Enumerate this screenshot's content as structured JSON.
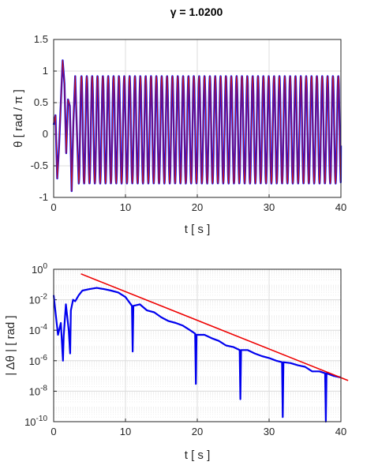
{
  "title": "γ = 1.0200",
  "chart_data": [
    {
      "type": "line",
      "title": "γ = 1.0200",
      "xlabel": "t  [ s ]",
      "ylabel": "θ  [ rad / π ]",
      "xlim": [
        0,
        40
      ],
      "ylim": [
        -1,
        1.5
      ],
      "xticks": [
        0,
        10,
        20,
        30,
        40
      ],
      "yticks": [
        -1,
        -0.5,
        0,
        0.5,
        1,
        1.5
      ],
      "xtick_labels": [
        "0",
        "10",
        "20",
        "30",
        "40"
      ],
      "ytick_labels": [
        "-1",
        "-0.5",
        "0",
        "0.5",
        "1",
        "1.5"
      ],
      "grid": true,
      "series": [
        {
          "color": "#1010ee",
          "x": [
            0.0,
            0.25,
            0.5,
            0.75,
            1.0,
            1.25,
            1.5,
            1.75,
            2.0,
            2.25,
            2.5,
            2.75,
            3.0,
            3.25,
            3.5,
            4.0,
            5.0,
            10.0,
            20.0,
            30.0,
            40.0
          ],
          "y": [
            0.15,
            0.3,
            -0.7,
            -0.2,
            0.5,
            1.17,
            0.8,
            -0.3,
            0.55,
            0.45,
            -0.9,
            0.2,
            0.92,
            0.0,
            -0.78,
            0.92,
            0.92,
            0.92,
            0.92,
            0.92,
            0.92
          ],
          "steady_state_max": 0.92,
          "steady_state_min": -0.78,
          "steady_state_period": 0.745
        },
        {
          "color": "#d01010",
          "x": [
            0.0,
            40.0
          ],
          "y": [
            0.15,
            -0.2
          ]
        }
      ]
    },
    {
      "type": "line",
      "xlabel": "t  [ s ]",
      "ylabel": "| Δθ |  [ rad ]",
      "xlim": [
        0,
        40
      ],
      "ylim": [
        1e-10,
        1
      ],
      "yscale": "log",
      "xticks": [
        0,
        10,
        20,
        30,
        40
      ],
      "xtick_labels": [
        "0",
        "10",
        "20",
        "30",
        "40"
      ],
      "ytick_labels": [
        {
          "base": "10",
          "exp": "-10"
        },
        {
          "base": "10",
          "exp": "-8"
        },
        {
          "base": "10",
          "exp": "-6"
        },
        {
          "base": "10",
          "exp": "-4"
        },
        {
          "base": "10",
          "exp": "-2"
        },
        {
          "base": "10",
          "exp": "0"
        }
      ],
      "grid": true,
      "series": [
        {
          "color": "#0000ee",
          "x": [
            0.0,
            0.3,
            0.6,
            1.0,
            1.3,
            1.4,
            1.7,
            2.1,
            2.3,
            2.4,
            2.7,
            3.0,
            3.5,
            4.0,
            5.0,
            6.0,
            7.0,
            8.0,
            9.0,
            10.0,
            10.9,
            11.0,
            11.1,
            12.0,
            13.0,
            14.0,
            15.0,
            16.0,
            17.0,
            18.0,
            19.0,
            19.7,
            19.8,
            19.9,
            21.0,
            22.0,
            23.0,
            24.0,
            25.0,
            25.9,
            26.0,
            26.1,
            27.0,
            28.0,
            29.0,
            30.0,
            31.0,
            31.8,
            31.9,
            32.0,
            33.0,
            34.0,
            35.0,
            36.0,
            37.0,
            37.8,
            37.9,
            38.0,
            39.0,
            40.0
          ],
          "y": [
            0.02,
            0.001,
            5e-05,
            0.0003,
            1e-06,
            4e-05,
            0.005,
            0.0001,
            3e-06,
            0.002,
            0.01,
            0.008,
            0.02,
            0.04,
            0.05,
            0.06,
            0.05,
            0.04,
            0.03,
            0.015,
            0.004,
            4e-06,
            0.004,
            0.005,
            0.002,
            0.0015,
            0.0007,
            0.0004,
            0.0003,
            0.0002,
            0.0001,
            6e-05,
            3e-08,
            5e-05,
            5e-05,
            3e-05,
            2e-05,
            1e-05,
            8e-06,
            5e-06,
            3e-09,
            5e-06,
            5e-06,
            3e-06,
            2e-06,
            1.5e-06,
            1e-06,
            8e-07,
            2e-10,
            8e-07,
            7e-07,
            5e-07,
            4e-07,
            2e-07,
            2e-07,
            1.5e-07,
            1e-10,
            1.5e-07,
            1e-07,
            8e-08
          ]
        },
        {
          "color": "#ee0000",
          "x": [
            3.8,
            41.0
          ],
          "y": [
            0.5,
            5e-08
          ]
        }
      ]
    }
  ]
}
